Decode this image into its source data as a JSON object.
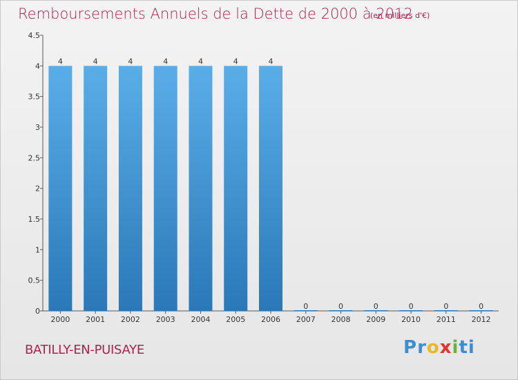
{
  "header": {
    "title": "Remboursements Annuels de la Dette de 2000 à 2012",
    "unit": "(en milliers d'€)"
  },
  "footer": {
    "commune": "BATILLY-EN-PUISAYE",
    "logo_letters": [
      "P",
      "r",
      "o",
      "x",
      "i",
      "t",
      "i"
    ],
    "logo_colors": [
      "#3b8fd1",
      "#3b8fd1",
      "#e8b923",
      "#e0352b",
      "#6cb33e",
      "#3b8fd1",
      "#3b8fd1"
    ]
  },
  "chart_data": {
    "type": "bar",
    "title": "Remboursements Annuels de la Dette de 2000 à 2012",
    "categories": [
      "2000",
      "2001",
      "2002",
      "2003",
      "2004",
      "2005",
      "2006",
      "2007",
      "2008",
      "2009",
      "2010",
      "2011",
      "2012"
    ],
    "values": [
      4,
      4,
      4,
      4,
      4,
      4,
      4,
      0,
      0,
      0,
      0,
      0,
      0
    ],
    "data_labels": [
      "4",
      "4",
      "4",
      "4",
      "4",
      "4",
      "4",
      "0",
      "0",
      "0",
      "0",
      "0",
      "0"
    ],
    "yticks": [
      "0",
      "0.5",
      "1",
      "1.5",
      "2",
      "2.5",
      "3",
      "3.5",
      "4",
      "4.5"
    ],
    "ylim": [
      0,
      4.5
    ],
    "bar_color_top": "#5aaee8",
    "bar_color_bottom": "#2a78b8",
    "grid": false
  }
}
